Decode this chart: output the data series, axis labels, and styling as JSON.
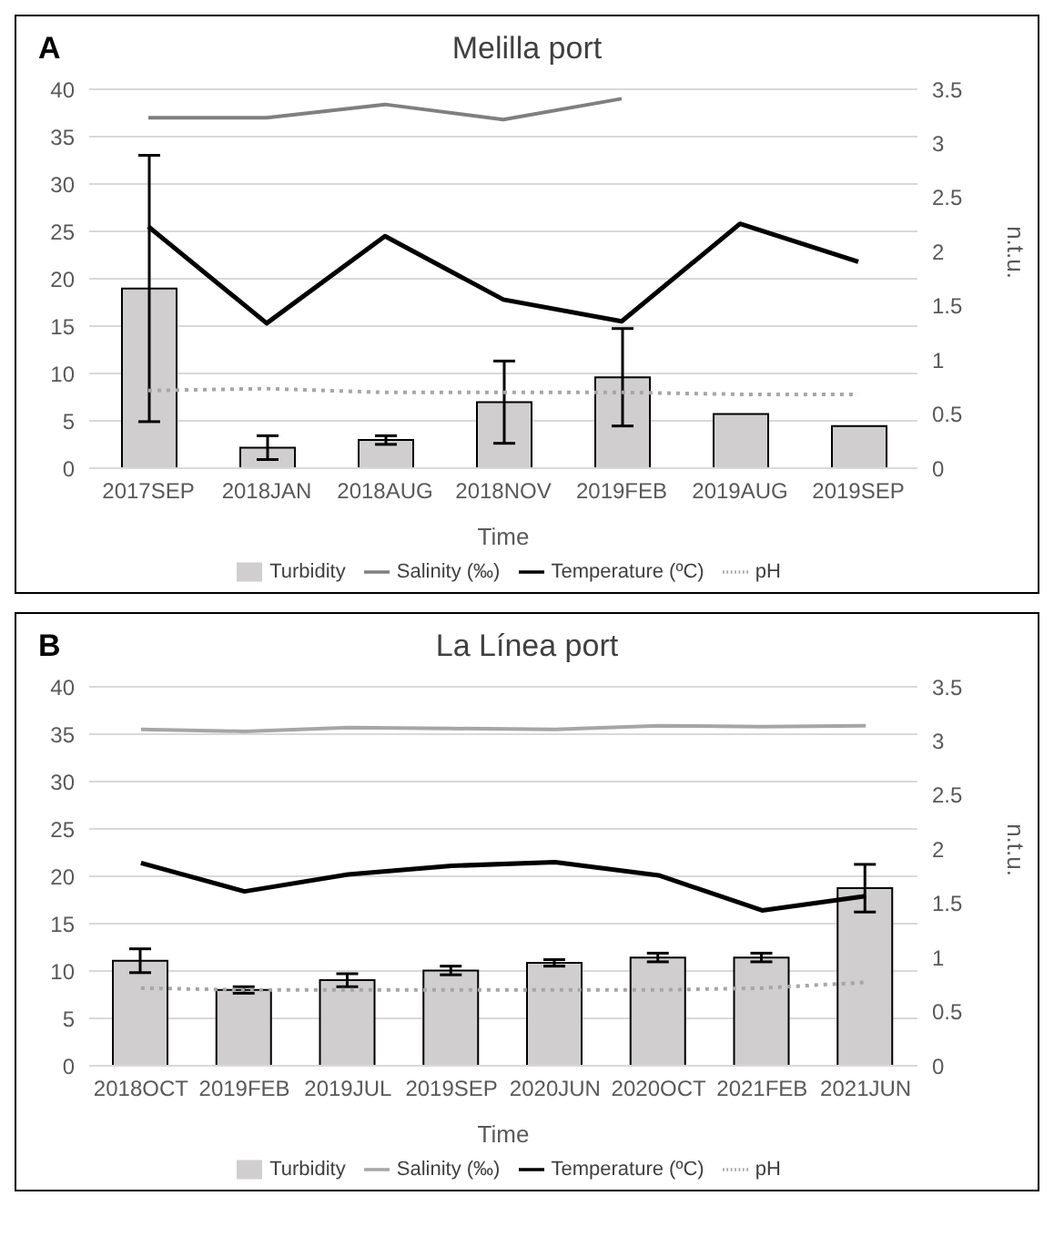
{
  "chart_data": [
    {
      "type": "bar",
      "title": "Melilla port",
      "annotations": [
        "A"
      ],
      "xlabel": "Time",
      "y2label": "n.t.u.",
      "categories": [
        "2017SEP",
        "2018JAN",
        "2018AUG",
        "2018NOV",
        "2019FEB",
        "2019AUG",
        "2019SEP"
      ],
      "series": [
        {
          "name": "Turbidity",
          "axis": "y2",
          "color": "#d0cece",
          "values": [
            1.66,
            0.19,
            0.26,
            0.61,
            0.84,
            0.5,
            0.39
          ],
          "errors": [
            1.23,
            0.11,
            0.04,
            0.38,
            0.45,
            null,
            null
          ]
        },
        {
          "name": "Salinity (‰)",
          "type": "line",
          "color": "#7f7f7f",
          "line_style": "solid",
          "values": [
            37,
            37,
            38.4,
            36.8,
            39,
            null,
            null
          ]
        },
        {
          "name": "Temperature (ºC)",
          "type": "line",
          "color": "#000000",
          "line_style": "solid",
          "values": [
            25.5,
            15.3,
            24.5,
            17.8,
            15.5,
            25.8,
            21.8
          ]
        },
        {
          "name": "pH",
          "type": "line",
          "color": "#a6a6a6",
          "line_style": "dotted",
          "values": [
            8.2,
            8.4,
            8.0,
            8.0,
            8.0,
            7.8,
            7.8
          ]
        }
      ],
      "ylim": [
        0,
        40
      ],
      "yticks": [
        0,
        5,
        10,
        15,
        20,
        25,
        30,
        35,
        40
      ],
      "y2lim": [
        0,
        3.5
      ],
      "y2ticks": [
        0,
        0.5,
        1,
        1.5,
        2,
        2.5,
        3,
        3.5
      ],
      "grid": "y",
      "legend": "bottom",
      "marker": "none"
    },
    {
      "type": "bar",
      "title": "La Línea port",
      "annotations": [
        "B"
      ],
      "xlabel": "Time",
      "y2label": "n.t.u.",
      "categories": [
        "2018OCT",
        "2019FEB",
        "2019JUL",
        "2019SEP",
        "2020JUN",
        "2020OCT",
        "2021FEB",
        "2021JUN"
      ],
      "series": [
        {
          "name": "Turbidity",
          "axis": "y2",
          "color": "#d0cece",
          "values": [
            0.97,
            0.7,
            0.79,
            0.88,
            0.95,
            1.0,
            1.0,
            1.64
          ],
          "errors": [
            0.11,
            0.03,
            0.06,
            0.04,
            0.03,
            0.04,
            0.04,
            0.22
          ]
        },
        {
          "name": "Salinity (‰)",
          "type": "line",
          "color": "#a6a6a6",
          "line_style": "solid",
          "values": [
            35.5,
            35.3,
            35.7,
            35.6,
            35.5,
            35.9,
            35.8,
            35.9
          ]
        },
        {
          "name": "Temperature (ºC)",
          "type": "line",
          "color": "#000000",
          "line_style": "solid",
          "values": [
            21.4,
            18.4,
            20.2,
            21.1,
            21.5,
            20.1,
            16.4,
            17.9
          ]
        },
        {
          "name": "pH",
          "type": "line",
          "color": "#a6a6a6",
          "line_style": "dotted",
          "values": [
            8.2,
            8.0,
            8.0,
            8.0,
            8.0,
            8.0,
            8.2,
            8.8
          ]
        }
      ],
      "ylim": [
        0,
        40
      ],
      "yticks": [
        0,
        5,
        10,
        15,
        20,
        25,
        30,
        35,
        40
      ],
      "y2lim": [
        0,
        3.5
      ],
      "y2ticks": [
        0,
        0.5,
        1,
        1.5,
        2,
        2.5,
        3,
        3.5
      ],
      "grid": "y",
      "legend": "bottom",
      "marker": "none"
    }
  ]
}
